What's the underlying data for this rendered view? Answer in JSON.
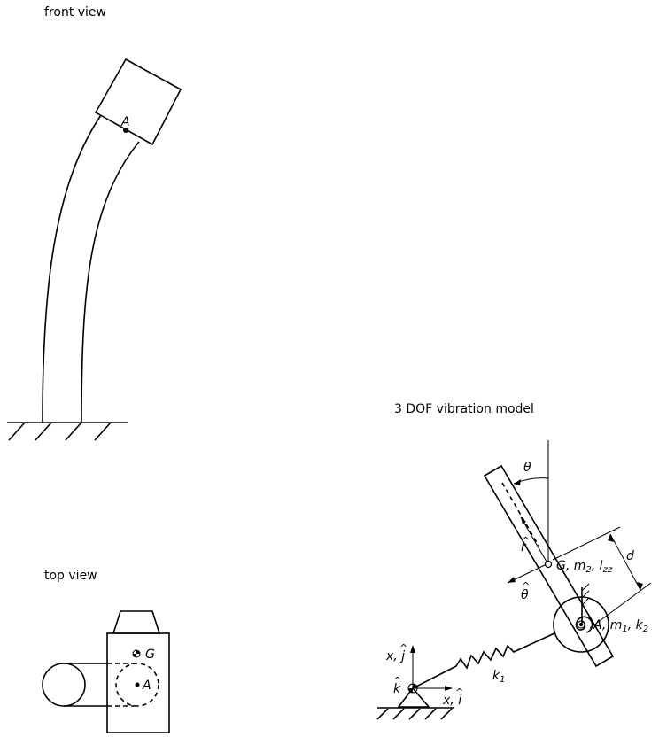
{
  "labels": {
    "front_view": "front view",
    "top_view": "top view",
    "model_title": "3 DOF vibration model",
    "point_a_front": "A",
    "point_a_top": "A",
    "point_g_top": "G",
    "theta": "θ",
    "d": "d",
    "r_hat": "r",
    "theta_hat": "θ",
    "g_label_g": "G, m",
    "g_label_m_sub": "2",
    "g_label_i": ", I",
    "g_label_i_sub": "zz",
    "a_label_a": "A, m",
    "a_label_m_sub": "1",
    "a_label_k": ", k",
    "a_label_k_sub": "2",
    "k1_k": "k",
    "k1_sub": "1",
    "x_j": "x, ",
    "j_hat": "j",
    "x_i": "x, ",
    "i_hat": "i",
    "k_hat": "k",
    "hat_mark": "^"
  }
}
